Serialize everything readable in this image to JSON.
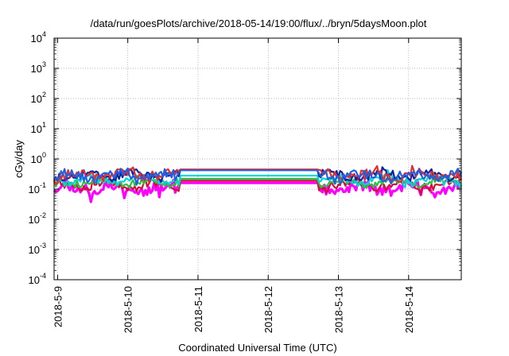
{
  "chart_data": {
    "type": "line",
    "title": "/data/run/goesPlots/archive/2018-05-14/19:00/flux/../bryn/5daysMoon.plot",
    "xlabel": "Coordinated Universal Time (UTC)",
    "ylabel": "cGy/day",
    "yscale": "log",
    "ylim": [
      0.0001,
      10000
    ],
    "xlim_days": [
      0,
      5.8
    ],
    "x_ticks": [
      "2018-5-9",
      "2018-5-10",
      "2018-5-11",
      "2018-5-12",
      "2018-5-13",
      "2018-5-14"
    ],
    "y_ticks": [
      {
        "base": "10",
        "exp": "-4"
      },
      {
        "base": "10",
        "exp": "-3"
      },
      {
        "base": "10",
        "exp": "-2"
      },
      {
        "base": "10",
        "exp": "-1"
      },
      {
        "base": "10",
        "exp": "0"
      },
      {
        "base": "10",
        "exp": "1"
      },
      {
        "base": "10",
        "exp": "2"
      },
      {
        "base": "10",
        "exp": "3"
      },
      {
        "base": "10",
        "exp": "4"
      }
    ],
    "grid": true,
    "legend": "none",
    "gap_days": [
      1.78,
      3.77
    ],
    "series": [
      {
        "color": "#ff00ff",
        "base": 0.11,
        "noise": 0.35,
        "gap_value": 0.16,
        "seed": 11
      },
      {
        "color": "#d0103a",
        "base": 0.14,
        "noise": 0.22,
        "gap_value": 0.19,
        "seed": 23
      },
      {
        "color": "#30c040",
        "base": 0.17,
        "noise": 0.22,
        "gap_value": 0.22,
        "seed": 37
      },
      {
        "color": "#00d8d8",
        "base": 0.21,
        "noise": 0.24,
        "gap_value": 0.28,
        "seed": 41
      },
      {
        "color": "#1020a0",
        "base": 0.3,
        "noise": 0.28,
        "gap_value": 0.43,
        "seed": 53
      },
      {
        "color": "#e03030",
        "base": 0.31,
        "noise": 0.3,
        "gap_value": 0.45,
        "seed": 67
      },
      {
        "color": "#2060e0",
        "base": 0.29,
        "noise": 0.34,
        "gap_value": 0.42,
        "seed": 79
      }
    ]
  }
}
